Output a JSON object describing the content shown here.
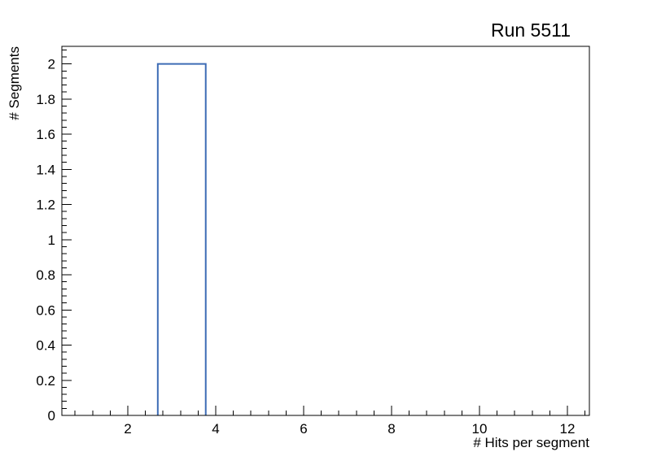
{
  "chart_data": {
    "type": "histogram",
    "title": "Run 5511",
    "xlabel": "# Hits per segment",
    "ylabel": "# Segments",
    "xlim": [
      0.5,
      12.5
    ],
    "ylim": [
      0,
      2.1
    ],
    "x_ticks": [
      "2",
      "4",
      "6",
      "8",
      "10",
      "12"
    ],
    "y_ticks": [
      "0",
      "0.2",
      "0.4",
      "0.6",
      "0.8",
      "1",
      "1.2",
      "1.4",
      "1.6",
      "1.8",
      "2"
    ],
    "x_minor_step": 0.4,
    "y_minor_step": 0.04,
    "bins": {
      "xmin": 0.5,
      "xmax": 12.5,
      "contents": [
        0,
        0,
        2,
        0,
        0,
        0,
        0,
        0,
        0,
        0,
        0
      ]
    },
    "hist_line_color": "#3d6cb5",
    "axis_color": "#000000",
    "background_color": "#ffffff",
    "grid": false,
    "legend": null
  }
}
